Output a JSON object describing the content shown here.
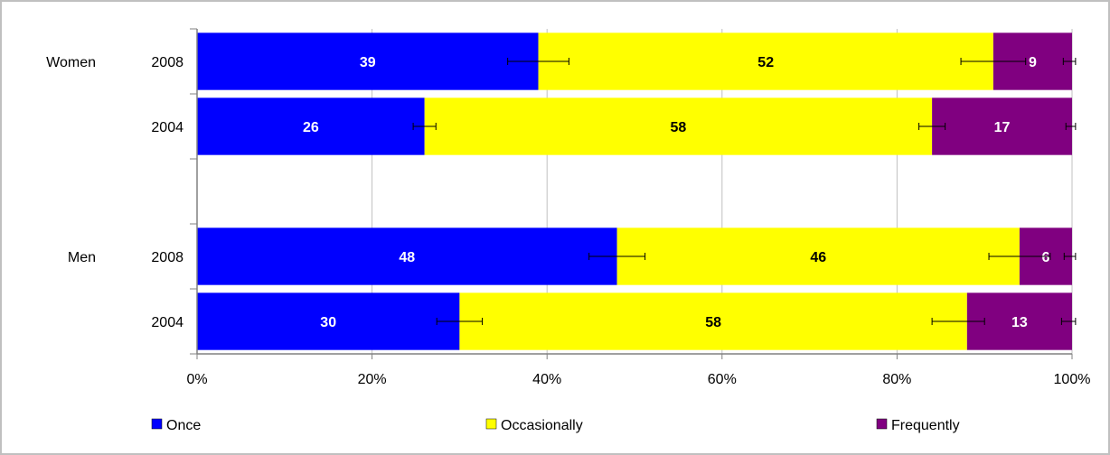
{
  "chart_data": {
    "type": "bar",
    "orientation": "horizontal",
    "stacked": true,
    "percent_stacked": true,
    "groups": [
      {
        "label": "Women",
        "rows": [
          {
            "label": "2008",
            "values": [
              39,
              52,
              9
            ],
            "error_centers": [
              39,
              91,
              100
            ],
            "error_halfwidths": [
              3.5,
              3.7,
              1.0
            ]
          },
          {
            "label": "2004",
            "values": [
              26,
              58,
              17
            ],
            "error_centers": [
              26,
              84,
              100
            ],
            "error_halfwidths": [
              1.3,
              1.5,
              0.7
            ]
          }
        ]
      },
      {
        "label": "Men",
        "rows": [
          {
            "label": "2008",
            "values": [
              48,
              46,
              6
            ],
            "error_centers": [
              48,
              94,
              100
            ],
            "error_halfwidths": [
              3.2,
              3.5,
              0.9
            ]
          },
          {
            "label": "2004",
            "values": [
              30,
              58,
              13
            ],
            "error_centers": [
              30,
              87,
              100
            ],
            "error_halfwidths": [
              2.6,
              3.0,
              1.2
            ]
          }
        ]
      }
    ],
    "series": [
      {
        "name": "Once",
        "color": "#0000FF",
        "label_color": "#FFFFFF"
      },
      {
        "name": "Occasionally",
        "color": "#FFFF00",
        "label_color": "#000000"
      },
      {
        "name": "Frequently",
        "color": "#800080",
        "label_color": "#FFFFFF"
      }
    ],
    "x_ticks": [
      "0%",
      "20%",
      "40%",
      "60%",
      "80%",
      "100%"
    ],
    "xlim": [
      0,
      100
    ],
    "grid": true,
    "legend_position": "bottom"
  }
}
